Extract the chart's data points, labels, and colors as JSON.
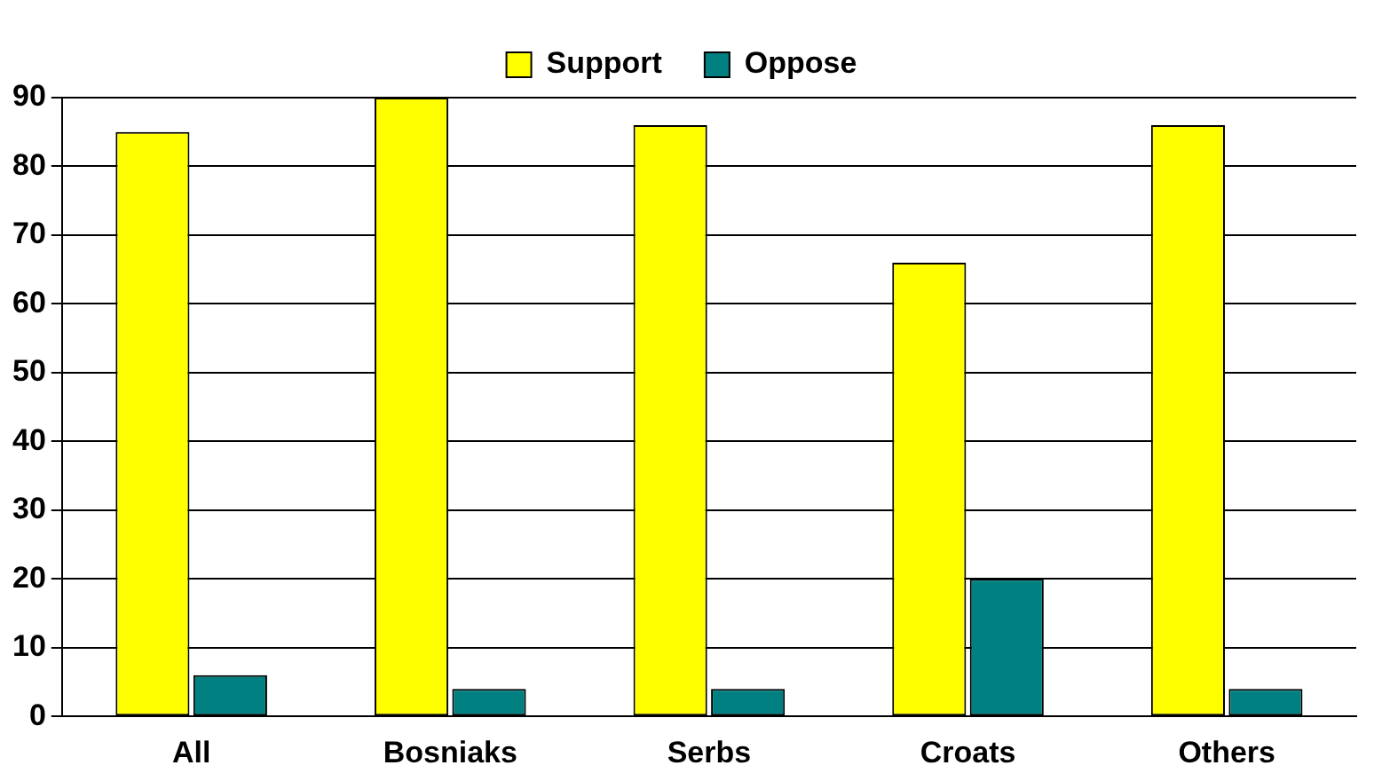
{
  "chart_data": {
    "type": "bar",
    "categories": [
      "All",
      "Bosniaks",
      "Serbs",
      "Croats",
      "Others"
    ],
    "series": [
      {
        "name": "Support",
        "color": "#ffff00",
        "values": [
          85,
          90,
          86,
          66,
          86
        ]
      },
      {
        "name": "Oppose",
        "color": "#008080",
        "values": [
          6,
          4,
          4,
          20,
          4
        ]
      }
    ],
    "ylim": [
      0,
      90
    ],
    "yticks": [
      0,
      10,
      20,
      30,
      40,
      50,
      60,
      70,
      80,
      90
    ],
    "grid": "y",
    "legend": "top"
  }
}
